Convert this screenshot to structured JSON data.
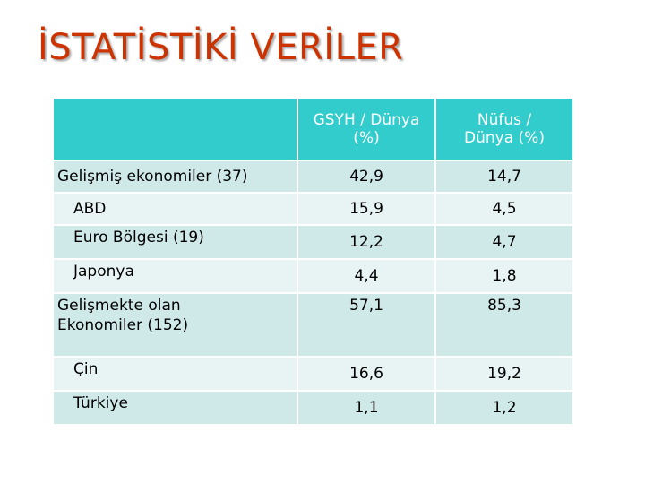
{
  "title": "İSTATİSTİKİ VERİLER",
  "table": {
    "header": {
      "col0": "",
      "col1_line1": "GSYH / Dünya",
      "col1_line2": "(%)",
      "col2_line1": "Nüfus /",
      "col2_line2": "Dünya (%)"
    },
    "rows": [
      {
        "label": "Gelişmiş ekonomiler (37)",
        "gsyh": "42,9",
        "nufus": "14,7"
      },
      {
        "label": "ABD",
        "gsyh": "15,9",
        "nufus": "4,5"
      },
      {
        "label": "Euro Bölgesi (19)",
        "gsyh": "12,2",
        "nufus": "4,7"
      },
      {
        "label": "Japonya",
        "gsyh": "4,4",
        "nufus": "1,8"
      },
      {
        "label_line1": "Gelişmekte olan",
        "label_line2": "Ekonomiler (152)",
        "gsyh": "57,1",
        "nufus": "85,3"
      },
      {
        "label": "Çin",
        "gsyh": "16,6",
        "nufus": "19,2"
      },
      {
        "label": "Türkiye",
        "gsyh": "1,1",
        "nufus": "1,2"
      }
    ]
  },
  "colors": {
    "title": "#cc3300",
    "header_bg": "#33cccc",
    "row_dark": "#cfe9e9",
    "row_light": "#e8f4f4"
  }
}
